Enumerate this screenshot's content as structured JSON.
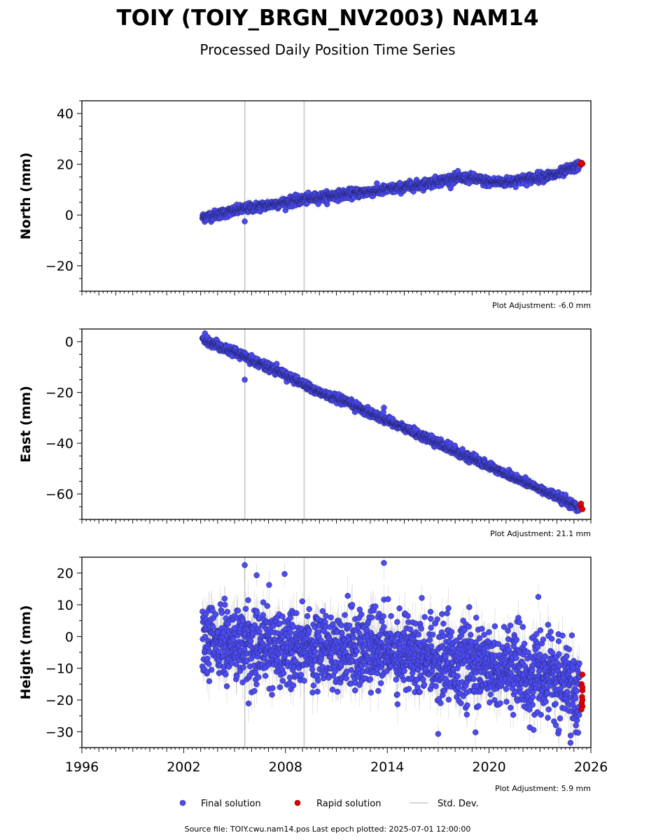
{
  "header": {
    "title": "TOIY (TOIY_BRGN_NV2003) NAM14",
    "subtitle": "Processed Daily Position Time Series"
  },
  "legend": {
    "final_label": "Final solution",
    "rapid_label": "Rapid solution",
    "std_label": "Std. Dev."
  },
  "footer": {
    "source": "Source file: TOIY.cwu.nam14.pos  Last epoch plotted: 2025-07-01 12:00:00"
  },
  "colors": {
    "final": "#4b4bf0",
    "rapid": "#e00000",
    "std": "#9a9a9a",
    "marker": "#c8c8c8"
  },
  "chart_data": [
    {
      "type": "scatter",
      "name": "north",
      "ylabel": "North (mm)",
      "xlim": [
        1996,
        2026
      ],
      "ylim": [
        -30,
        45
      ],
      "yticks": [
        -20,
        0,
        20,
        40
      ],
      "xticks": [],
      "adjustment": "Plot Adjustment: -6.0 mm",
      "event_markers": [
        2005.6,
        2009.1
      ],
      "data_start": 2003.1,
      "final_end": 2025.35,
      "rapid_end": 2025.5,
      "trend": [
        [
          2003.1,
          -1
        ],
        [
          2005.6,
          2.5
        ],
        [
          2008.0,
          5
        ],
        [
          2010.0,
          7
        ],
        [
          2012.0,
          8.5
        ],
        [
          2014.0,
          10
        ],
        [
          2016.0,
          12
        ],
        [
          2018.0,
          14.5
        ],
        [
          2019.0,
          14.5
        ],
        [
          2020.0,
          13
        ],
        [
          2021.0,
          13
        ],
        [
          2022.0,
          14
        ],
        [
          2023.0,
          15
        ],
        [
          2024.0,
          16
        ],
        [
          2025.5,
          20
        ]
      ],
      "scatter_sd": 0.9,
      "outliers": [
        [
          2005.6,
          -2.5
        ]
      ],
      "rapid_values": [
        [
          2025.4,
          20.0
        ],
        [
          2025.45,
          20.6
        ],
        [
          2025.5,
          20.2
        ],
        [
          2025.42,
          20.4
        ]
      ]
    },
    {
      "type": "scatter",
      "name": "east",
      "ylabel": "East (mm)",
      "xlim": [
        1996,
        2026
      ],
      "ylim": [
        -70,
        5
      ],
      "yticks": [
        -60,
        -40,
        -20,
        0
      ],
      "xticks": [],
      "adjustment": "Plot Adjustment: 21.1 mm",
      "event_markers": [
        2005.6,
        2009.1
      ],
      "data_start": 2003.1,
      "final_end": 2025.35,
      "rapid_end": 2025.5,
      "trend": [
        [
          2003.1,
          1
        ],
        [
          2005.0,
          -4
        ],
        [
          2008.0,
          -13
        ],
        [
          2010.0,
          -20
        ],
        [
          2012.0,
          -25
        ],
        [
          2014.0,
          -31
        ],
        [
          2016.0,
          -37
        ],
        [
          2018.0,
          -43
        ],
        [
          2020.0,
          -49
        ],
        [
          2022.0,
          -55
        ],
        [
          2024.0,
          -61
        ],
        [
          2025.5,
          -66
        ]
      ],
      "scatter_sd": 0.8,
      "outliers": [
        [
          2005.6,
          -15
        ],
        [
          2013.8,
          -26
        ]
      ],
      "rapid_values": [
        [
          2025.4,
          -64.5
        ],
        [
          2025.45,
          -65.5
        ],
        [
          2025.5,
          -66.0
        ],
        [
          2025.42,
          -63.8
        ]
      ]
    },
    {
      "type": "scatter",
      "name": "height",
      "ylabel": "Height (mm)",
      "xlim": [
        1996,
        2026
      ],
      "ylim": [
        -35,
        25
      ],
      "yticks": [
        -30,
        -20,
        -10,
        0,
        10,
        20
      ],
      "xticks": [
        1996,
        2002,
        2008,
        2014,
        2020,
        2026
      ],
      "adjustment": "Plot Adjustment: 5.9 mm",
      "event_markers": [
        2005.6,
        2009.1
      ],
      "data_start": 2003.1,
      "final_end": 2025.35,
      "rapid_end": 2025.5,
      "trend": [
        [
          2003.1,
          -2
        ],
        [
          2008.0,
          -3
        ],
        [
          2012.0,
          -4
        ],
        [
          2016.0,
          -5
        ],
        [
          2018.0,
          -8
        ],
        [
          2020.0,
          -10
        ],
        [
          2022.0,
          -11
        ],
        [
          2024.0,
          -14
        ],
        [
          2025.5,
          -18
        ]
      ],
      "scatter_sd": 6.0,
      "outliers": [
        [
          2005.6,
          22.5
        ],
        [
          2006.3,
          19.3
        ],
        [
          2013.8,
          23.2
        ],
        [
          2022.9,
          12.5
        ],
        [
          2024.8,
          -33.5
        ],
        [
          2019.2,
          -30.2
        ],
        [
          2017.0,
          -30.7
        ]
      ],
      "rapid_values": [
        [
          2025.5,
          -12
        ],
        [
          2025.45,
          -15
        ],
        [
          2025.5,
          -17
        ],
        [
          2025.48,
          -19
        ],
        [
          2025.5,
          -20
        ],
        [
          2025.46,
          -21
        ],
        [
          2025.5,
          -22
        ],
        [
          2025.44,
          -23
        ],
        [
          2025.5,
          -16
        ]
      ]
    }
  ]
}
